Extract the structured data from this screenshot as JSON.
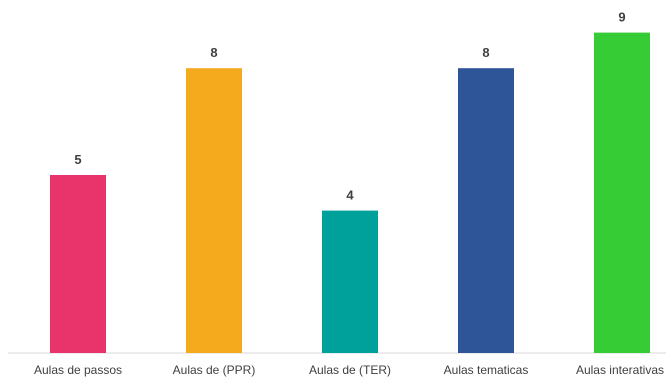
{
  "chart_data": {
    "type": "bar",
    "title": "",
    "xlabel": "",
    "ylabel": "",
    "categories": [
      "Aulas de passos",
      "Aulas de (PPR)",
      "Aulas de (TER)",
      "Aulas tematicas",
      "Aulas interativas"
    ],
    "values": [
      5,
      8,
      4,
      8,
      9
    ],
    "colors": [
      "#e8336b",
      "#f5a91d",
      "#00a19a",
      "#2e5597",
      "#35cc35"
    ],
    "ylim": [
      0,
      9
    ],
    "grid": false,
    "legend": "none",
    "data_labels": true
  }
}
